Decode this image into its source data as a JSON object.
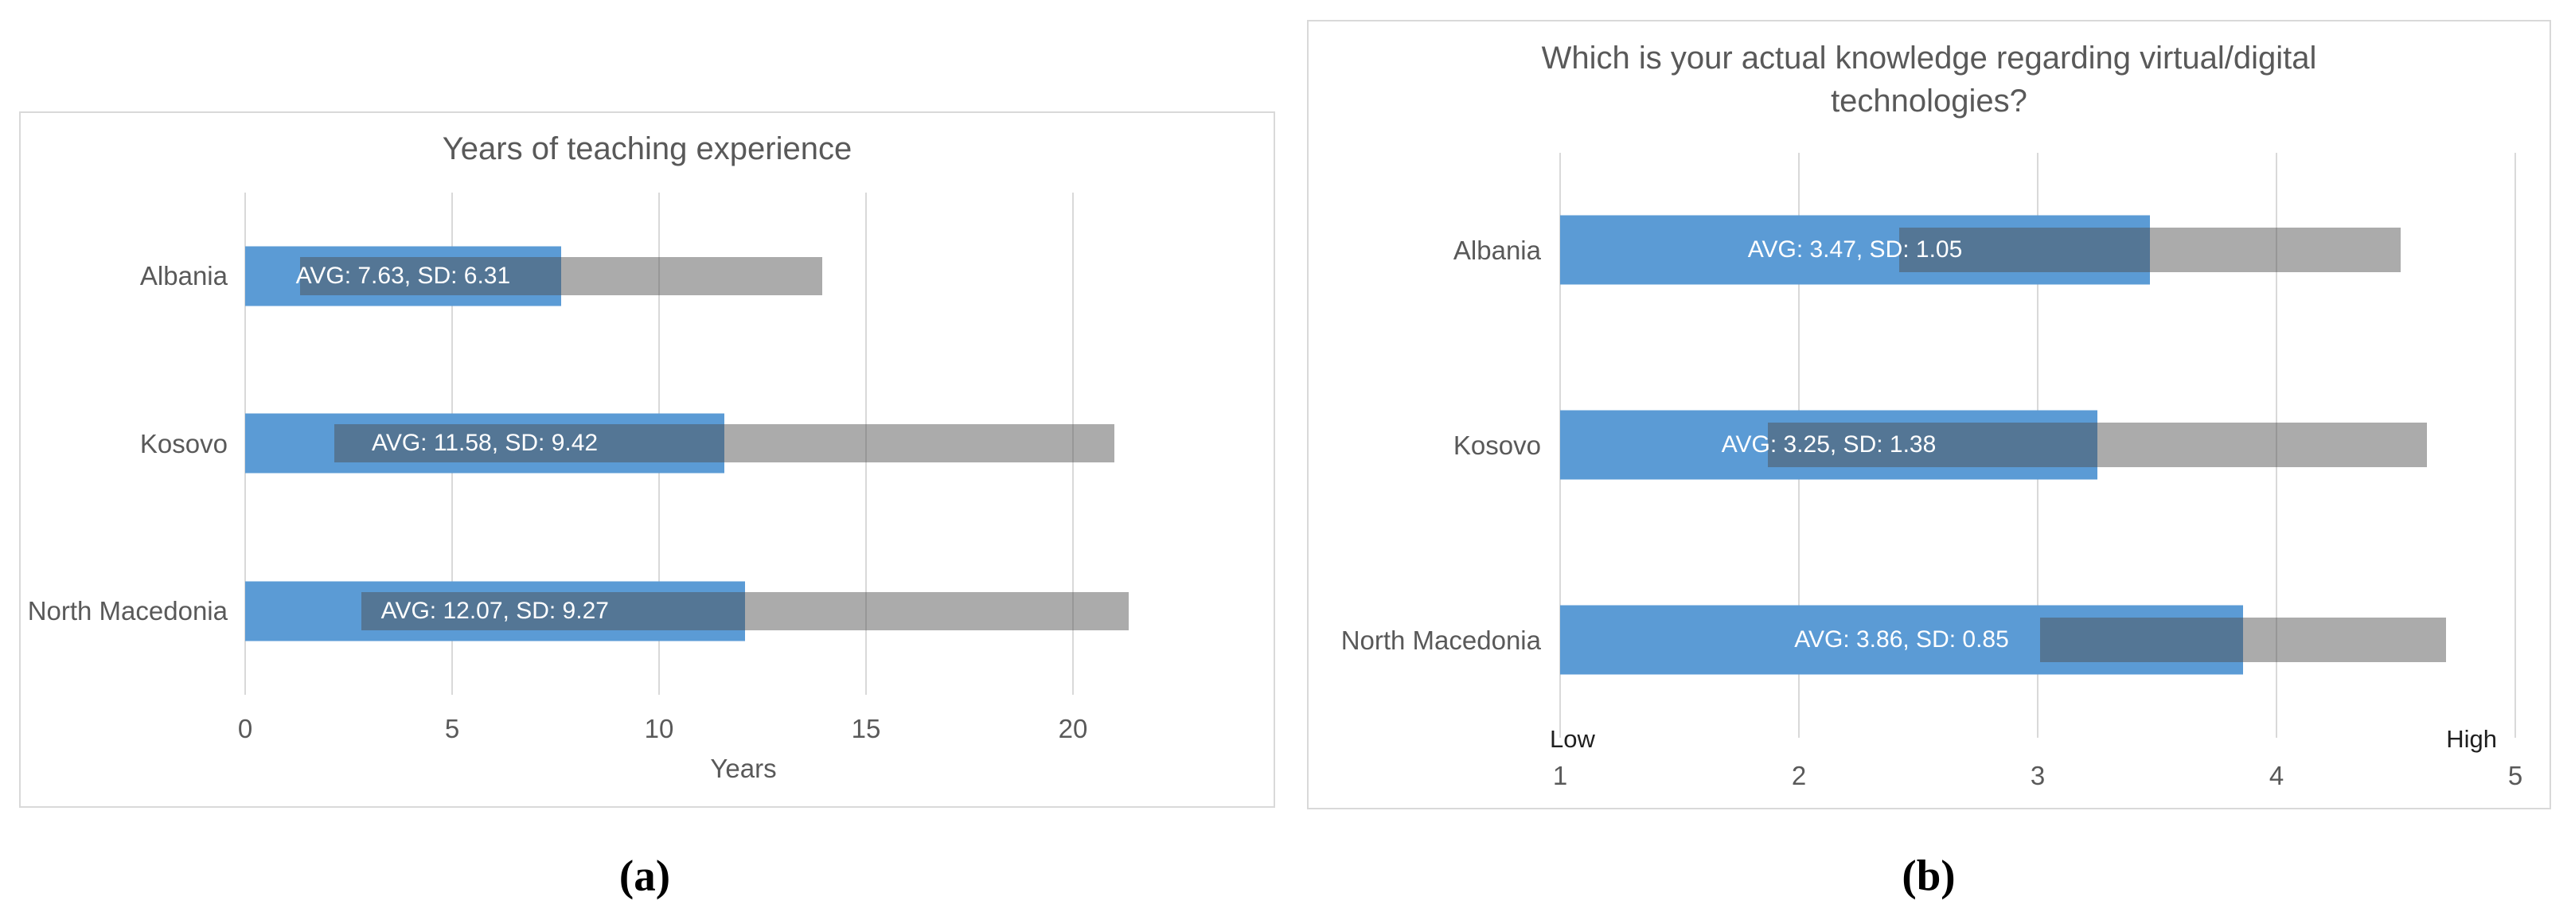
{
  "chart_data": [
    {
      "type": "bar",
      "orientation": "horizontal",
      "caption": "(a)",
      "title": "Years of teaching experience",
      "title_lines": [
        "Years of teaching experience"
      ],
      "categories": [
        "Albania",
        "Kosovo",
        "North Macedonia"
      ],
      "series": [
        {
          "name": "AVG",
          "values": [
            7.63,
            11.58,
            12.07
          ]
        },
        {
          "name": "SD",
          "values": [
            6.31,
            9.42,
            9.27
          ]
        }
      ],
      "bar_labels": [
        "AVG: 7.63, SD: 6.31",
        "AVG: 11.58, SD: 9.42",
        "AVG: 12.07, SD: 9.27"
      ],
      "xlabel": "Years",
      "xlim": [
        0,
        24
      ],
      "xticks": [
        0,
        5,
        10,
        15,
        20
      ],
      "xtick_labels": [
        "0",
        "5",
        "10",
        "15",
        "20"
      ],
      "grid": true,
      "legend": false,
      "encoding": "blue bar spans axis-min to AVG; translucent gray bar spans AVG-SD to AVG+SD; overlap appears dark slate; white stats label centered on blue bar"
    },
    {
      "type": "bar",
      "orientation": "horizontal",
      "caption": "(b)",
      "title": "Which is your actual knowledge regarding virtual/digital technologies?",
      "title_lines": [
        "Which is your actual knowledge regarding virtual/digital",
        "technologies?"
      ],
      "categories": [
        "Albania",
        "Kosovo",
        "North Macedonia"
      ],
      "series": [
        {
          "name": "AVG",
          "values": [
            3.47,
            3.25,
            3.86
          ]
        },
        {
          "name": "SD",
          "values": [
            1.05,
            1.38,
            0.85
          ]
        }
      ],
      "bar_labels": [
        "AVG: 3.47, SD: 1.05",
        "AVG: 3.25, SD: 1.38",
        "AVG: 3.86, SD: 0.85"
      ],
      "xlabel": "",
      "xlim": [
        1,
        5
      ],
      "xticks": [
        1,
        2,
        3,
        4,
        5
      ],
      "xtick_labels": [
        "1",
        "2",
        "3",
        "4",
        "5"
      ],
      "axis_end_labels": {
        "low": "Low",
        "high": "High"
      },
      "grid": true,
      "legend": false,
      "encoding": "same construction as (a); scale anchored Low at 1 and High at 5"
    }
  ],
  "colors": {
    "bar_blue": "#5B9BD5",
    "bar_gray_overlay": "rgba(76,76,76,0.47)",
    "bar_overlap_visual": "#54748F",
    "gridline": "#D9D9D9",
    "panel_border": "#D9D9D9",
    "text_gray": "#595959",
    "bar_label_text": "#FFFFFF",
    "low_high_text": "#1F1F1F",
    "caption_text": "#000000",
    "background": "#FFFFFF"
  }
}
